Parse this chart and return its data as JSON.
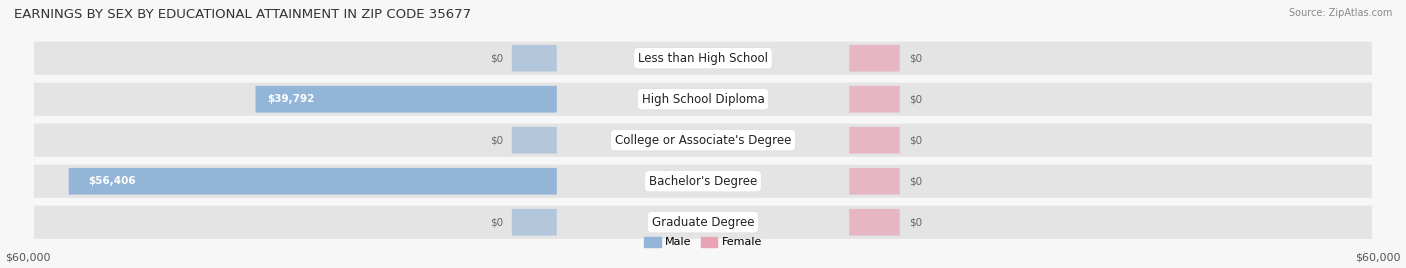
{
  "title": "EARNINGS BY SEX BY EDUCATIONAL ATTAINMENT IN ZIP CODE 35677",
  "source": "Source: ZipAtlas.com",
  "categories": [
    "Less than High School",
    "High School Diploma",
    "College or Associate's Degree",
    "Bachelor's Degree",
    "Graduate Degree"
  ],
  "male_values": [
    0,
    39792,
    0,
    56406,
    0
  ],
  "female_values": [
    0,
    0,
    0,
    0,
    0
  ],
  "max_val": 60000,
  "male_color": "#93b5d7",
  "female_color": "#e8a3b5",
  "row_bg_color": "#e4e4e4",
  "fig_bg_color": "#f7f7f7",
  "male_label_color": "#ffffff",
  "zero_label_color": "#666666",
  "axis_label_left": "$60,000",
  "axis_label_right": "$60,000",
  "legend_male": "Male",
  "legend_female": "Female",
  "title_fontsize": 9.5,
  "source_fontsize": 7,
  "bar_fontsize": 7.5,
  "cat_fontsize": 8.5,
  "tick_fontsize": 8
}
